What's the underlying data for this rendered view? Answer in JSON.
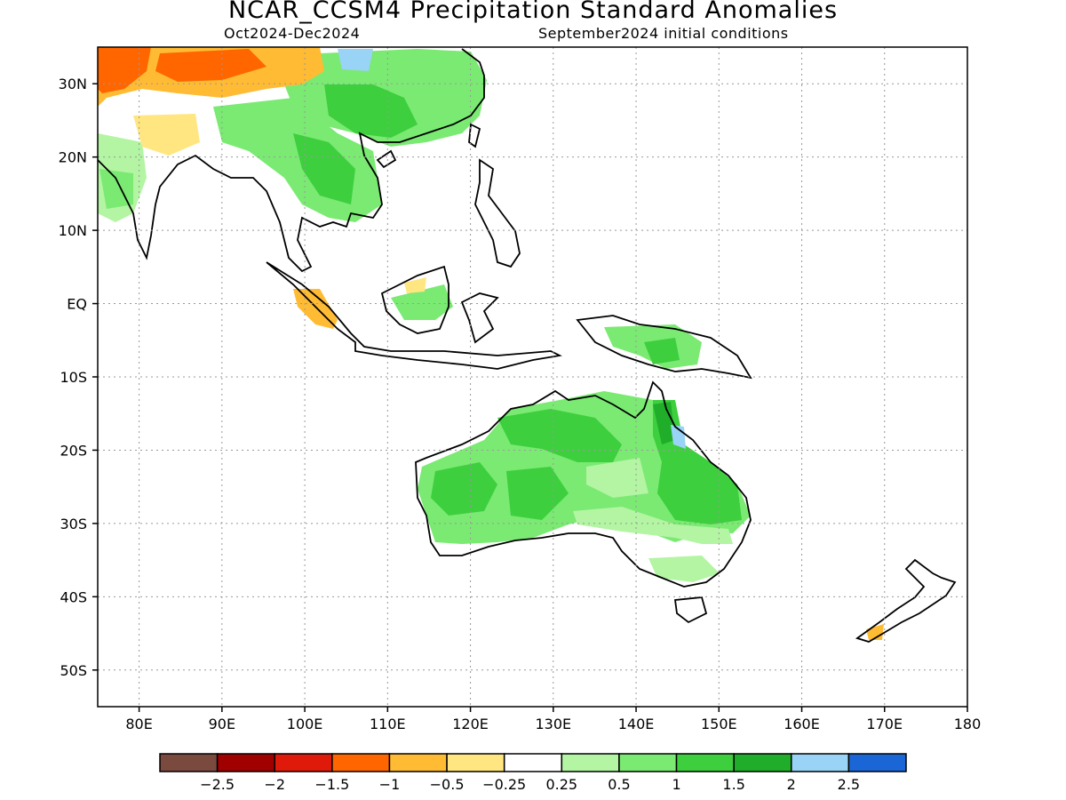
{
  "title": "NCAR_CCSM4 Precipitation Standard Anomalies",
  "subtitle_left": "Oct2024-Dec2024",
  "subtitle_right": "September2024 initial conditions",
  "map": {
    "lon_range": [
      75,
      180
    ],
    "lat_range": [
      -55,
      35
    ],
    "lat_labels": [
      {
        "lat": 30,
        "label": "30N"
      },
      {
        "lat": 20,
        "label": "20N"
      },
      {
        "lat": 10,
        "label": "10N"
      },
      {
        "lat": 0,
        "label": "EQ"
      },
      {
        "lat": -10,
        "label": "10S"
      },
      {
        "lat": -20,
        "label": "20S"
      },
      {
        "lat": -30,
        "label": "30S"
      },
      {
        "lat": -40,
        "label": "40S"
      },
      {
        "lat": -50,
        "label": "50S"
      }
    ],
    "lon_labels": [
      {
        "lon": 80,
        "label": "80E"
      },
      {
        "lon": 90,
        "label": "90E"
      },
      {
        "lon": 100,
        "label": "100E"
      },
      {
        "lon": 110,
        "label": "110E"
      },
      {
        "lon": 120,
        "label": "120E"
      },
      {
        "lon": 130,
        "label": "130E"
      },
      {
        "lon": 140,
        "label": "140E"
      },
      {
        "lon": 150,
        "label": "150E"
      },
      {
        "lon": 160,
        "label": "160E"
      },
      {
        "lon": 170,
        "label": "170E"
      },
      {
        "lon": 180,
        "label": "180"
      }
    ],
    "grid": "dotted"
  },
  "legend": {
    "colors": [
      "#7b4a3f",
      "#a00000",
      "#e01a0a",
      "#ff6600",
      "#ffbb33",
      "#ffe680",
      "#ffffff",
      "#b3f5a3",
      "#7aea72",
      "#3dcf3d",
      "#1fad2a",
      "#99d3f5",
      "#1a66d6"
    ],
    "labels": [
      "-2.5",
      "-2",
      "-1.5",
      "-1",
      "-0.5",
      "-0.25",
      "0.25",
      "0.5",
      "1",
      "1.5",
      "2",
      "2.5"
    ]
  }
}
